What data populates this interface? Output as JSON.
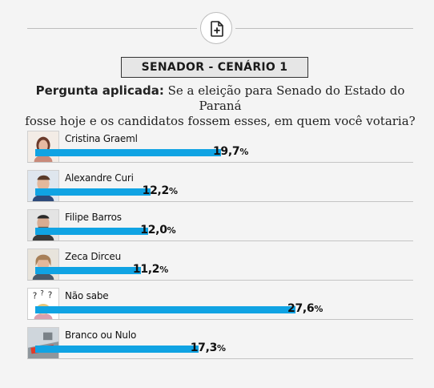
{
  "header": {
    "title": "SENADOR - CENÁRIO 1",
    "question_lead": "Pergunta aplicada:",
    "question_text_line1": " Se a eleição para Senado do Estado do Paraná",
    "question_text_line2": "fosse hoje e os candidatos fossem esses, em quem você votaria?"
  },
  "colors": {
    "bar": "#10a3e3",
    "background": "#f4f4f4"
  },
  "chart_data": {
    "type": "bar",
    "orientation": "horizontal",
    "title": "SENADOR - CENÁRIO 1",
    "unit": "%",
    "categories": [
      "Cristina Graeml",
      "Alexandre Curi",
      "Filipe Barros",
      "Zeca Dirceu",
      "Não sabe",
      "Branco ou Nulo"
    ],
    "values": [
      19.7,
      12.2,
      12.0,
      11.2,
      27.6,
      17.3
    ],
    "value_labels": [
      "19,7",
      "12,2",
      "12,0",
      "11,2",
      "27,6",
      "17,3"
    ],
    "xlim": [
      0,
      40
    ]
  }
}
